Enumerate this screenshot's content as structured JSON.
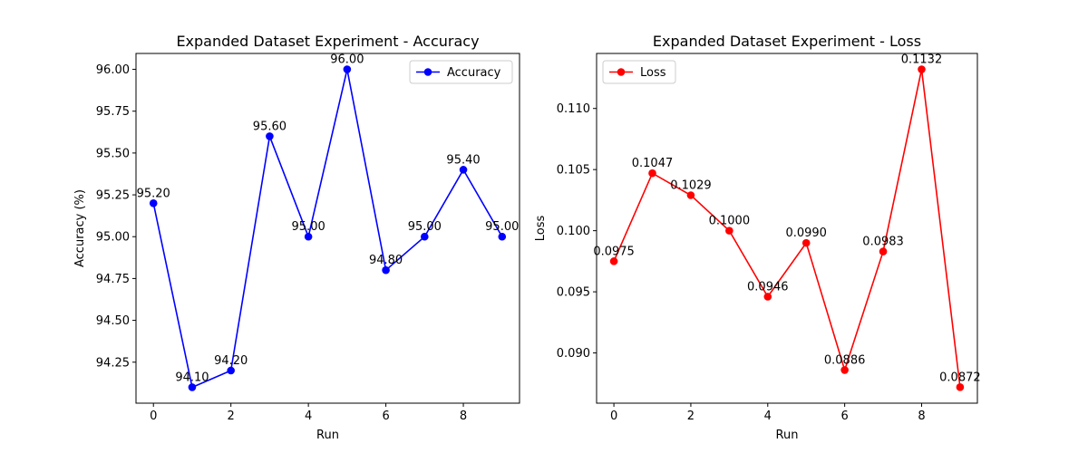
{
  "chart_data": [
    {
      "type": "line",
      "title": "Expanded Dataset Experiment - Accuracy",
      "xlabel": "Run",
      "ylabel": "Accuracy (%)",
      "x": [
        0,
        1,
        2,
        3,
        4,
        5,
        6,
        7,
        8,
        9
      ],
      "xlim": [
        -0.45,
        9.45
      ],
      "ylim": [
        94.005,
        96.095
      ],
      "xticks": [
        0,
        2,
        4,
        6,
        8
      ],
      "xtick_labels": [
        "0",
        "2",
        "4",
        "6",
        "8"
      ],
      "yticks": [
        94.25,
        94.5,
        94.75,
        95.0,
        95.25,
        95.5,
        95.75,
        96.0
      ],
      "ytick_labels": [
        "94.25",
        "94.50",
        "94.75",
        "95.00",
        "95.25",
        "95.50",
        "95.75",
        "96.00"
      ],
      "series": [
        {
          "name": "Accuracy",
          "color": "#0000ff",
          "values": [
            95.2,
            94.1,
            94.2,
            95.6,
            95.0,
            96.0,
            94.8,
            95.0,
            95.4,
            95.0
          ],
          "labels": [
            "95.20",
            "94.10",
            "94.20",
            "95.60",
            "95.00",
            "96.00",
            "94.80",
            "95.00",
            "95.40",
            "95.00"
          ]
        }
      ],
      "legend": "top-right",
      "grid": false
    },
    {
      "type": "line",
      "title": "Expanded Dataset Experiment - Loss",
      "xlabel": "Run",
      "ylabel": "Loss",
      "x": [
        0,
        1,
        2,
        3,
        4,
        5,
        6,
        7,
        8,
        9
      ],
      "xlim": [
        -0.45,
        9.45
      ],
      "ylim": [
        0.08589,
        0.1145
      ],
      "xticks": [
        0,
        2,
        4,
        6,
        8
      ],
      "xtick_labels": [
        "0",
        "2",
        "4",
        "6",
        "8"
      ],
      "yticks": [
        0.09,
        0.095,
        0.1,
        0.105,
        0.11
      ],
      "ytick_labels": [
        "0.090",
        "0.095",
        "0.100",
        "0.105",
        "0.110"
      ],
      "series": [
        {
          "name": "Loss",
          "color": "#ff0000",
          "values": [
            0.0975,
            0.1047,
            0.1029,
            0.1,
            0.0946,
            0.099,
            0.0886,
            0.0983,
            0.1132,
            0.0872
          ],
          "labels": [
            "0.0975",
            "0.1047",
            "0.1029",
            "0.1000",
            "0.0946",
            "0.0990",
            "0.0886",
            "0.0983",
            "0.1132",
            "0.0872"
          ]
        }
      ],
      "legend": "top-left",
      "grid": false
    }
  ]
}
